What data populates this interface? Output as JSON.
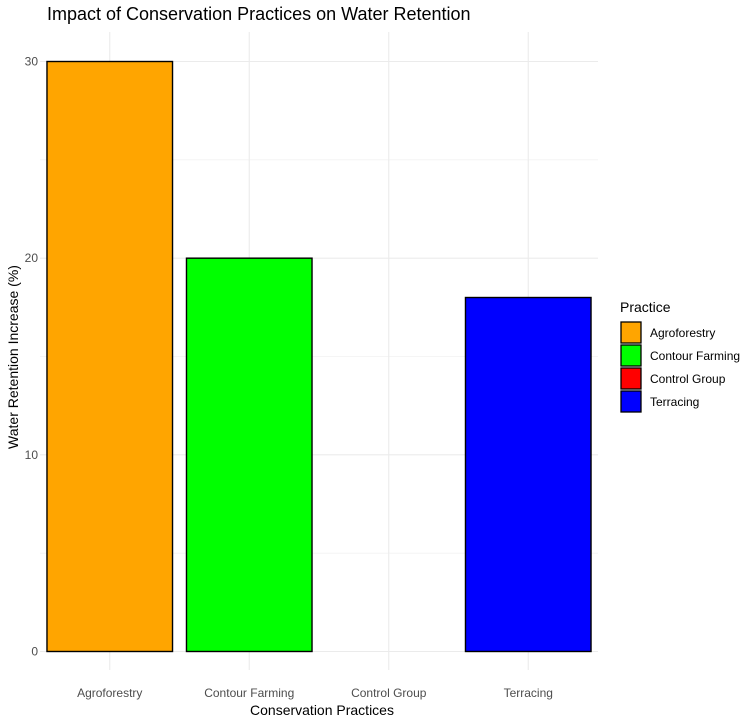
{
  "chart_data": {
    "type": "bar",
    "title": "Impact of Conservation Practices on Water Retention",
    "xlabel": "Conservation Practices",
    "ylabel": "Water Retention Increase (%)",
    "categories": [
      "Agroforestry",
      "Contour Farming",
      "Control Group",
      "Terracing"
    ],
    "values": [
      30,
      20,
      0,
      18
    ],
    "colors": [
      "#FFA500",
      "#00FF00",
      "#FF0000",
      "#0000FF"
    ],
    "ylim": [
      0,
      30
    ],
    "yticks": [
      0,
      10,
      20,
      30
    ],
    "grid": true,
    "legend": {
      "title": "Practice",
      "position": "right",
      "entries": [
        "Agroforestry",
        "Contour Farming",
        "Control Group",
        "Terracing"
      ]
    }
  }
}
